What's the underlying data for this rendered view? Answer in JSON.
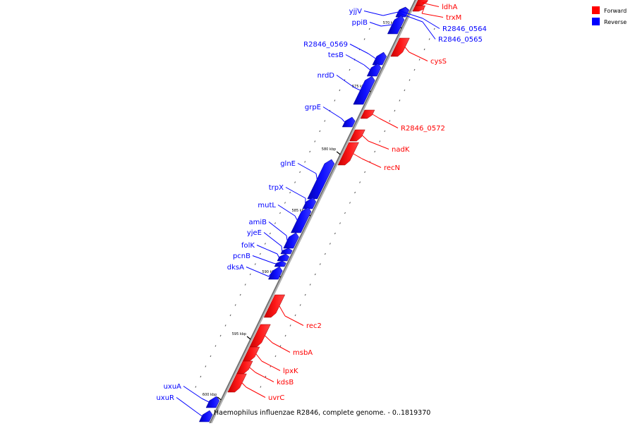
{
  "caption": "Haemophilus influenzae R2846, complete genome. - 0..1819370",
  "legend": {
    "forward": {
      "label": "Forward",
      "color": "#ff0000"
    },
    "reverse": {
      "label": "Reverse",
      "color": "#0000ff"
    }
  },
  "scale_ticks": [
    "570 kbp",
    "575 kbp",
    "580 kbp",
    "585 kbp",
    "590 kbp",
    "595 kbp",
    "600 kbp"
  ],
  "genes": [
    {
      "name": "ldhA",
      "strand": "forward"
    },
    {
      "name": "trxM",
      "strand": "forward"
    },
    {
      "name": "R2846_0564",
      "strand": "reverse"
    },
    {
      "name": "R2846_0565",
      "strand": "reverse"
    },
    {
      "name": "yjjV",
      "strand": "reverse"
    },
    {
      "name": "ppiB",
      "strand": "reverse"
    },
    {
      "name": "cysS",
      "strand": "forward"
    },
    {
      "name": "R2846_0569",
      "strand": "reverse"
    },
    {
      "name": "tesB",
      "strand": "reverse"
    },
    {
      "name": "nrdD",
      "strand": "reverse"
    },
    {
      "name": "grpE",
      "strand": "reverse"
    },
    {
      "name": "R2846_0572",
      "strand": "forward"
    },
    {
      "name": "nadK",
      "strand": "forward"
    },
    {
      "name": "recN",
      "strand": "forward"
    },
    {
      "name": "glnE",
      "strand": "reverse"
    },
    {
      "name": "trpX",
      "strand": "reverse"
    },
    {
      "name": "mutL",
      "strand": "reverse"
    },
    {
      "name": "amiB",
      "strand": "reverse"
    },
    {
      "name": "yjeE",
      "strand": "reverse"
    },
    {
      "name": "folK",
      "strand": "reverse"
    },
    {
      "name": "pcnB",
      "strand": "reverse"
    },
    {
      "name": "dksA",
      "strand": "reverse"
    },
    {
      "name": "rec2",
      "strand": "forward"
    },
    {
      "name": "msbA",
      "strand": "forward"
    },
    {
      "name": "lpxK",
      "strand": "forward"
    },
    {
      "name": "kdsB",
      "strand": "forward"
    },
    {
      "name": "uvrC",
      "strand": "forward"
    },
    {
      "name": "uxuA",
      "strand": "reverse"
    },
    {
      "name": "uxuR",
      "strand": "reverse"
    }
  ]
}
